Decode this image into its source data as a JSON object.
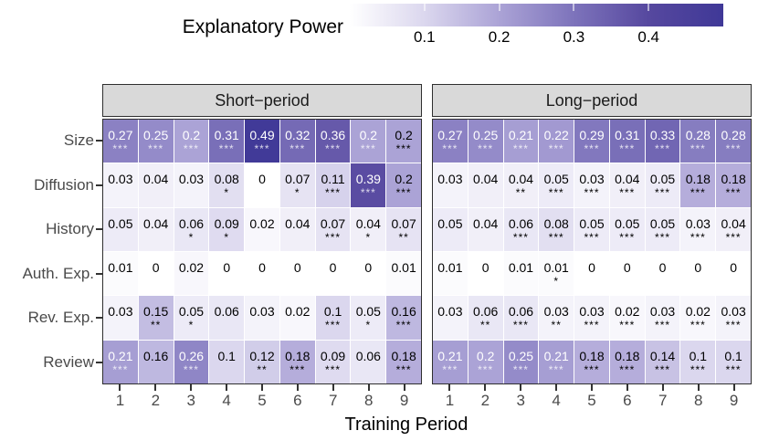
{
  "legend": {
    "title": "Explanatory Power",
    "tick_labels": [
      "0.1",
      "0.2",
      "0.3",
      "0.4"
    ]
  },
  "axes": {
    "x_title": "Training Period",
    "x_tick_labels": [
      "1",
      "2",
      "3",
      "4",
      "5",
      "6",
      "7",
      "8",
      "9"
    ],
    "y_labels": [
      "Size",
      "Diffusion",
      "History",
      "Auth. Exp.",
      "Rev. Exp.",
      "Review"
    ]
  },
  "colors": {
    "strip_bg": "#d9d9d9",
    "panel_border": "#2f2f2f",
    "axis_text": "#4a4a4a",
    "tick_mark": "#333333",
    "cell_text_dark": "#000000",
    "cell_text_light": "#ffffff"
  },
  "chart_data": {
    "type": "heatmap",
    "fill_legend_title": "Explanatory Power",
    "fill_domain": [
      0,
      0.5
    ],
    "fill_scale_stops": [
      [
        0,
        "#ffffff"
      ],
      [
        0.1,
        "#dbd7ee"
      ],
      [
        0.2,
        "#aba3d6"
      ],
      [
        0.3,
        "#7d73bb"
      ],
      [
        0.4,
        "#56489f"
      ],
      [
        0.5,
        "#3f3897"
      ]
    ],
    "legend_ticks": [
      0.1,
      0.2,
      0.3,
      0.4
    ],
    "x": [
      1,
      2,
      3,
      4,
      5,
      6,
      7,
      8,
      9
    ],
    "xlabel": "Training Period",
    "y_categories": [
      "Size",
      "Diffusion",
      "History",
      "Auth. Exp.",
      "Rev. Exp.",
      "Review"
    ],
    "panels": [
      {
        "label": "Short−period",
        "values": [
          [
            0.27,
            0.25,
            0.2,
            0.31,
            0.49,
            0.32,
            0.36,
            0.2,
            0.2
          ],
          [
            0.03,
            0.04,
            0.03,
            0.08,
            0,
            0.07,
            0.11,
            0.39,
            0.2
          ],
          [
            0.05,
            0.04,
            0.06,
            0.09,
            0.02,
            0.04,
            0.07,
            0.04,
            0.07
          ],
          [
            0.01,
            0,
            0.02,
            0,
            0,
            0,
            0,
            0,
            0.01
          ],
          [
            0.03,
            0.15,
            0.05,
            0.06,
            0.03,
            0.02,
            0.1,
            0.05,
            0.16
          ],
          [
            0.21,
            0.16,
            0.26,
            0.1,
            0.12,
            0.18,
            0.09,
            0.06,
            0.18
          ]
        ],
        "significance": [
          [
            "***",
            "***",
            "***",
            "***",
            "***",
            "***",
            "***",
            "***",
            "***"
          ],
          [
            "",
            "",
            "",
            "*",
            "",
            "*",
            "***",
            "***",
            "***"
          ],
          [
            "",
            "",
            "*",
            "*",
            "",
            "",
            "***",
            "*",
            "**"
          ],
          [
            "",
            "",
            "",
            "",
            "",
            "",
            "",
            "",
            ""
          ],
          [
            "",
            "**",
            "*",
            "",
            "",
            "",
            "***",
            "*",
            "***"
          ],
          [
            "***",
            "",
            "***",
            "",
            "**",
            "***",
            "***",
            "",
            "***"
          ]
        ],
        "light_text": [
          [
            1,
            1,
            1,
            1,
            1,
            1,
            1,
            1,
            0
          ],
          [
            0,
            0,
            0,
            0,
            0,
            0,
            0,
            1,
            0
          ],
          [
            0,
            0,
            0,
            0,
            0,
            0,
            0,
            0,
            0
          ],
          [
            0,
            0,
            0,
            0,
            0,
            0,
            0,
            0,
            0
          ],
          [
            0,
            0,
            0,
            0,
            0,
            0,
            0,
            0,
            0
          ],
          [
            1,
            0,
            1,
            0,
            0,
            0,
            0,
            0,
            0
          ]
        ]
      },
      {
        "label": "Long−period",
        "values": [
          [
            0.27,
            0.25,
            0.21,
            0.22,
            0.29,
            0.31,
            0.33,
            0.28,
            0.28
          ],
          [
            0.03,
            0.04,
            0.04,
            0.05,
            0.03,
            0.04,
            0.05,
            0.18,
            0.18
          ],
          [
            0.05,
            0.04,
            0.06,
            0.08,
            0.05,
            0.05,
            0.05,
            0.03,
            0.04
          ],
          [
            0.01,
            0,
            0.01,
            0.01,
            0,
            0,
            0,
            0,
            0
          ],
          [
            0.03,
            0.06,
            0.06,
            0.03,
            0.03,
            0.02,
            0.03,
            0.02,
            0.03
          ],
          [
            0.21,
            0.2,
            0.25,
            0.21,
            0.18,
            0.18,
            0.14,
            0.1,
            0.1
          ]
        ],
        "significance": [
          [
            "***",
            "***",
            "***",
            "***",
            "***",
            "***",
            "***",
            "***",
            "***"
          ],
          [
            "",
            "",
            "**",
            "***",
            "***",
            "***",
            "***",
            "***",
            "***"
          ],
          [
            "",
            "",
            "***",
            "***",
            "***",
            "***",
            "***",
            "***",
            "***"
          ],
          [
            "",
            "",
            "",
            "*",
            "",
            "",
            "",
            "",
            ""
          ],
          [
            "",
            "**",
            "***",
            "**",
            "***",
            "***",
            "***",
            "***",
            "***"
          ],
          [
            "***",
            "***",
            "***",
            "***",
            "***",
            "***",
            "***",
            "***",
            "***"
          ]
        ],
        "light_text": [
          [
            1,
            1,
            1,
            1,
            1,
            1,
            1,
            1,
            1
          ],
          [
            0,
            0,
            0,
            0,
            0,
            0,
            0,
            0,
            0
          ],
          [
            0,
            0,
            0,
            0,
            0,
            0,
            0,
            0,
            0
          ],
          [
            0,
            0,
            0,
            0,
            0,
            0,
            0,
            0,
            0
          ],
          [
            0,
            0,
            0,
            0,
            0,
            0,
            0,
            0,
            0
          ],
          [
            1,
            1,
            1,
            1,
            0,
            0,
            0,
            0,
            0
          ]
        ]
      }
    ]
  }
}
